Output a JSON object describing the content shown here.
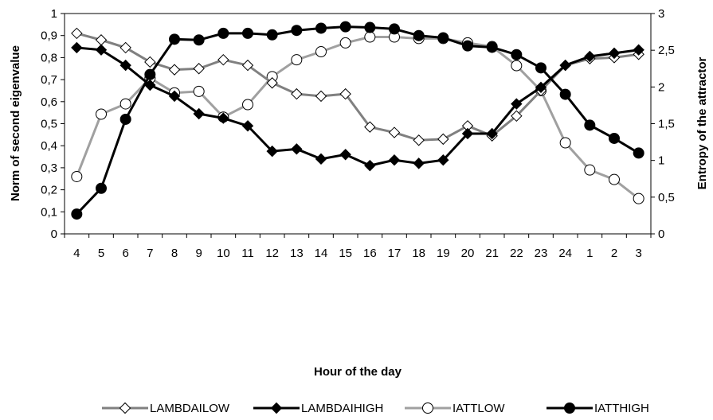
{
  "chart_data": {
    "type": "line",
    "title": "",
    "xlabel": "Hour of the day",
    "ylabel_left": "Norm of second eigenvalue",
    "ylabel_right": "Entropy of the attractor",
    "categories": [
      "4",
      "5",
      "6",
      "7",
      "8",
      "9",
      "10",
      "11",
      "12",
      "13",
      "14",
      "15",
      "16",
      "17",
      "18",
      "19",
      "20",
      "21",
      "22",
      "23",
      "24",
      "1",
      "2",
      "3"
    ],
    "ylim_left": [
      0,
      1
    ],
    "ylim_right": [
      0,
      3
    ],
    "yticks_left": [
      "0",
      "0,1",
      "0,2",
      "0,3",
      "0,4",
      "0,5",
      "0,6",
      "0,7",
      "0,8",
      "0,9",
      "1"
    ],
    "yticks_right": [
      "0",
      "0,5",
      "1",
      "1,5",
      "2",
      "2,5",
      "3"
    ],
    "grid": false,
    "legend_position": "bottom",
    "series": [
      {
        "name": "LAMBDAILOW",
        "axis": "left",
        "marker": "diamond-open",
        "line_color": "#808080",
        "values": [
          0.91,
          0.88,
          0.845,
          0.78,
          0.745,
          0.75,
          0.79,
          0.765,
          0.685,
          0.635,
          0.625,
          0.635,
          0.485,
          0.46,
          0.425,
          0.43,
          0.49,
          0.445,
          0.535,
          0.65,
          0.765,
          0.795,
          0.8,
          0.815
        ]
      },
      {
        "name": "LAMBDAIHIGH",
        "axis": "left",
        "marker": "diamond-filled",
        "line_color": "#000000",
        "values": [
          0.845,
          0.835,
          0.765,
          0.675,
          0.625,
          0.545,
          0.525,
          0.49,
          0.375,
          0.385,
          0.34,
          0.36,
          0.31,
          0.335,
          0.32,
          0.335,
          0.455,
          0.455,
          0.59,
          0.665,
          0.765,
          0.805,
          0.82,
          0.835
        ]
      },
      {
        "name": "IATTLOW",
        "axis": "right",
        "marker": "circle-open",
        "line_color": "#a0a0a0",
        "values": [
          0.78,
          1.63,
          1.77,
          2.12,
          1.92,
          1.94,
          1.59,
          1.76,
          2.14,
          2.37,
          2.48,
          2.6,
          2.68,
          2.68,
          2.66,
          2.66,
          2.6,
          2.55,
          2.29,
          1.95,
          1.24,
          0.87,
          0.74,
          0.48
        ]
      },
      {
        "name": "IATTHIGH",
        "axis": "right",
        "marker": "circle-filled",
        "line_color": "#000000",
        "values": [
          0.27,
          0.62,
          1.56,
          2.17,
          2.65,
          2.64,
          2.73,
          2.73,
          2.71,
          2.77,
          2.8,
          2.82,
          2.81,
          2.79,
          2.7,
          2.67,
          2.56,
          2.54,
          2.44,
          2.26,
          1.9,
          1.48,
          1.3,
          1.1
        ]
      }
    ]
  }
}
